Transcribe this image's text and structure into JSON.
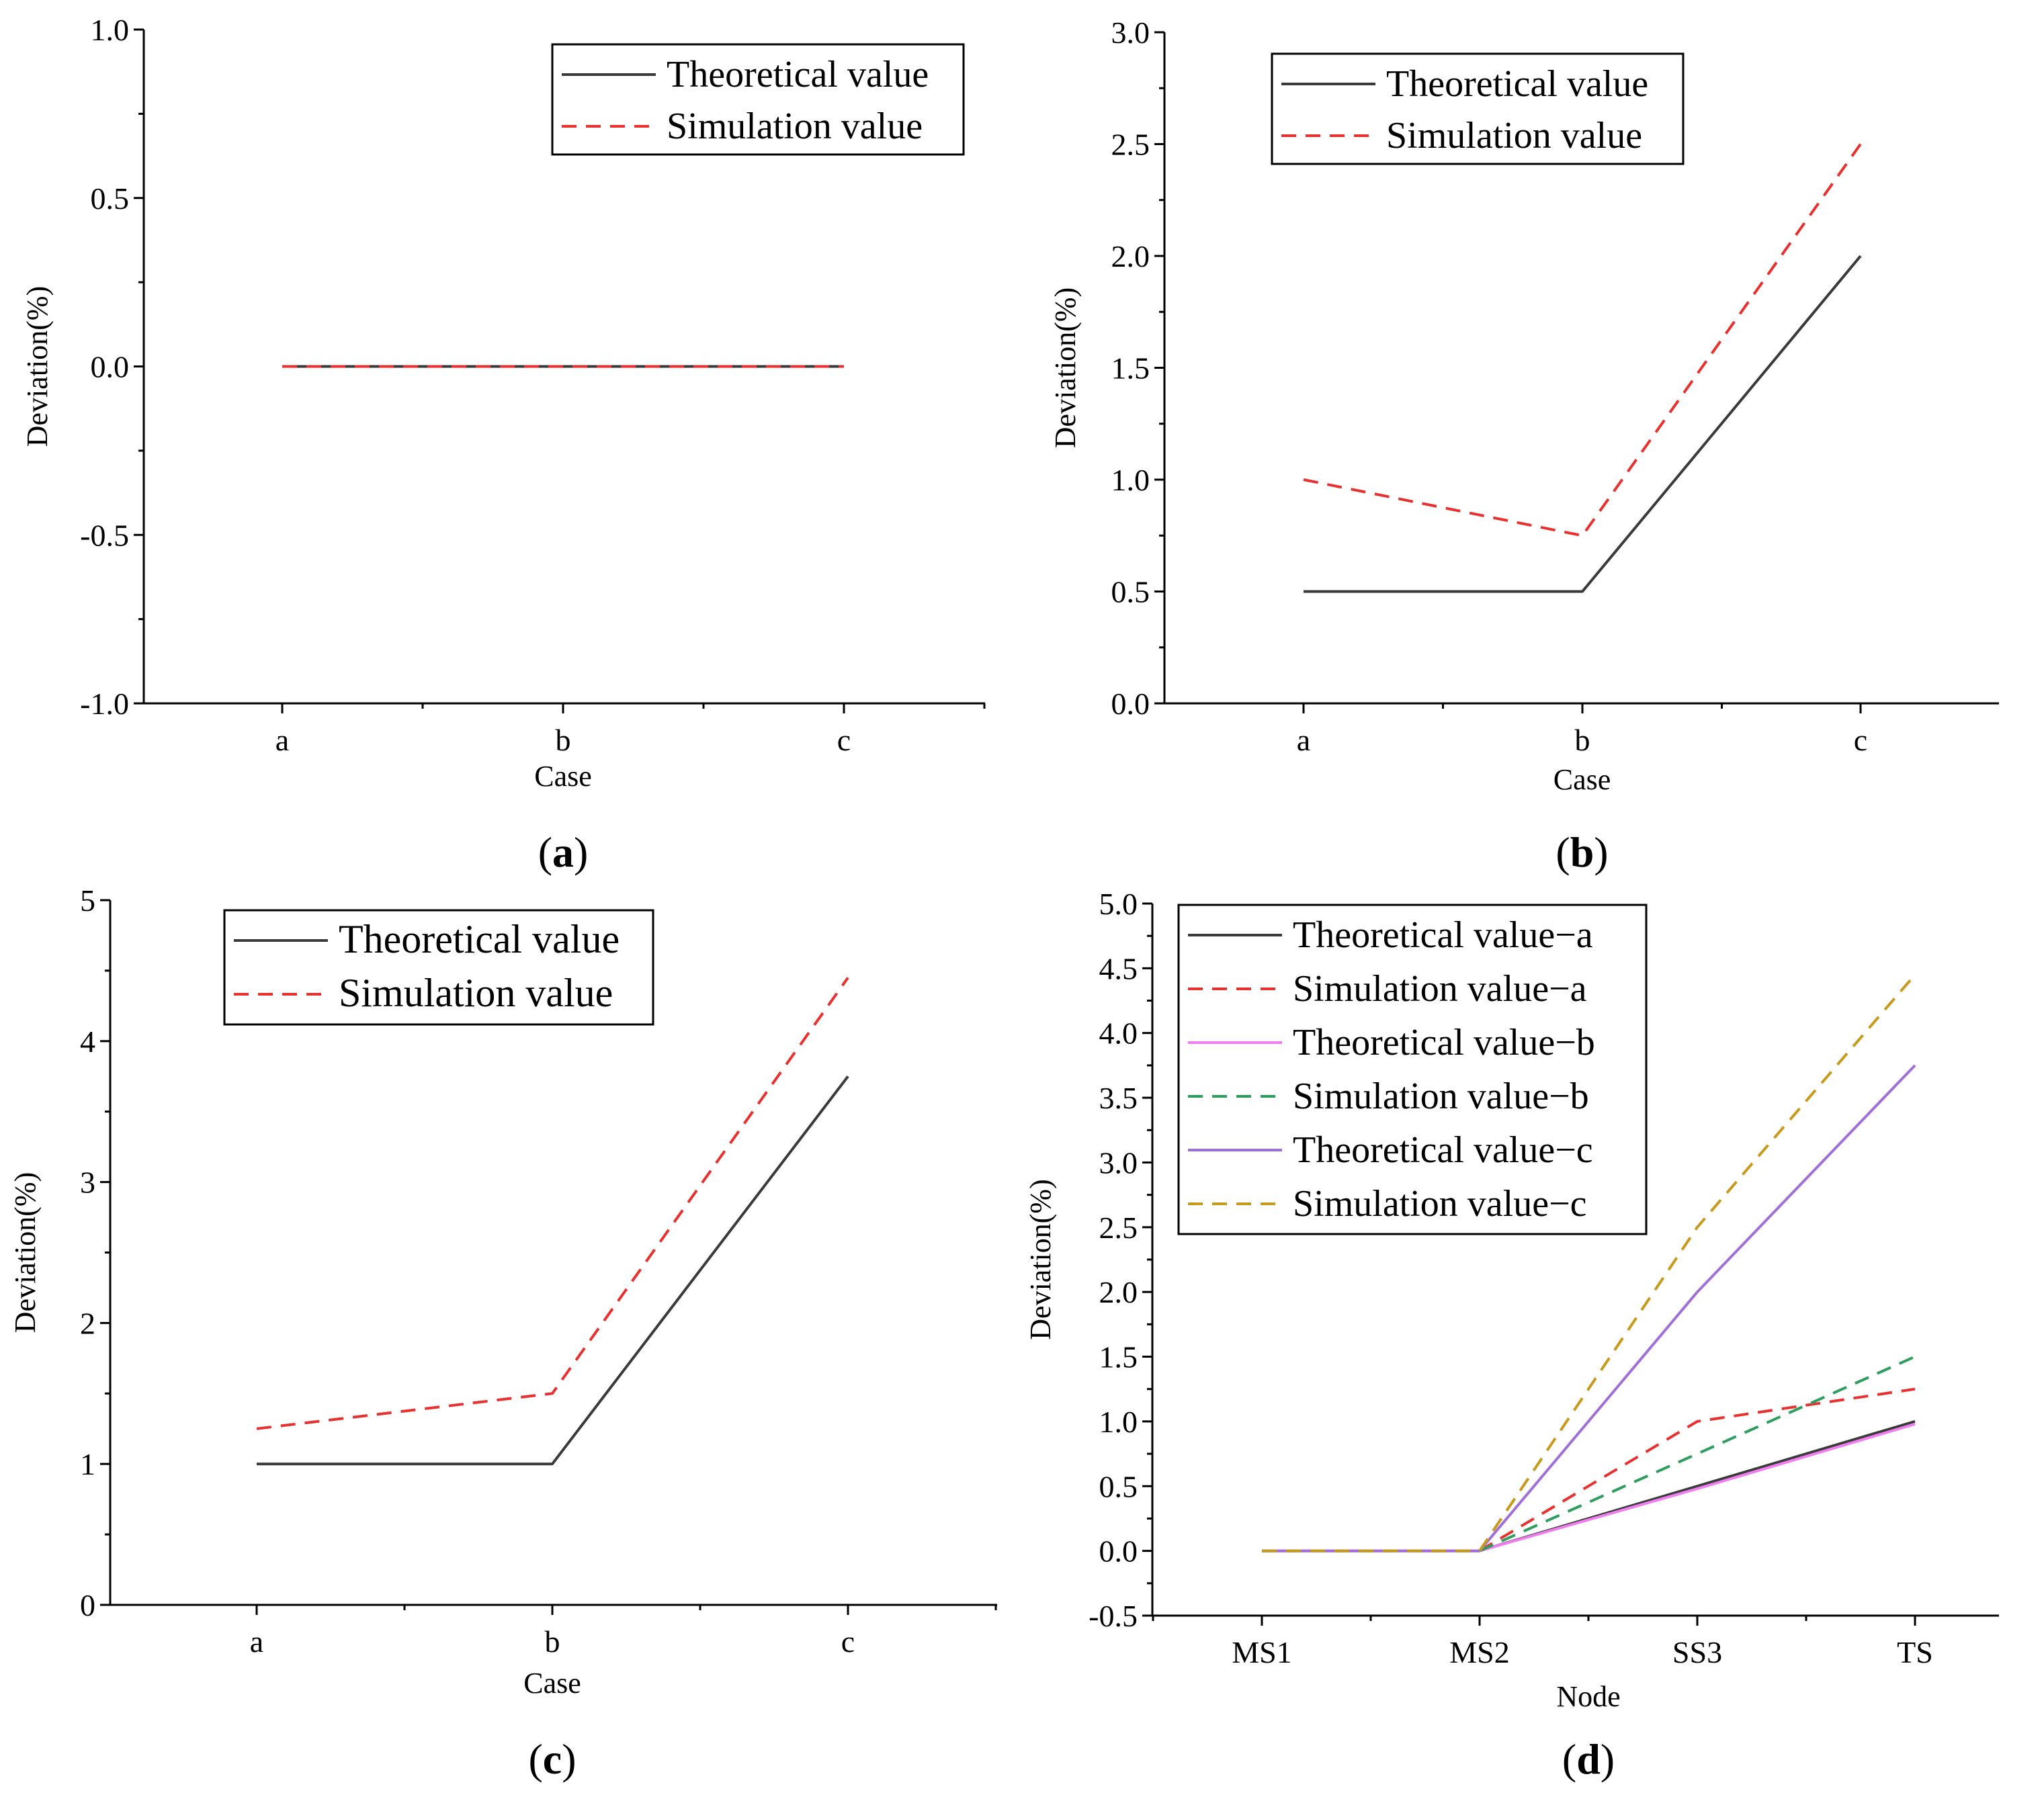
{
  "colors": {
    "theoretical": "#3a3a3a",
    "simulation": "#e8312f",
    "theoretical_b": "#f07ef0",
    "simulation_b": "#2e9e5f",
    "theoretical_c": "#a070d8",
    "simulation_c": "#c89a1c"
  },
  "chart_data": [
    {
      "panel": "(a)",
      "panel_letter": "a",
      "type": "line",
      "xlabel": "Case",
      "ylabel": "Deviation(%)",
      "categories": [
        "a",
        "b",
        "c"
      ],
      "ylim": [
        -1.0,
        1.0
      ],
      "yticks": [
        -1.0,
        -0.5,
        0.0,
        0.5,
        1.0
      ],
      "ytick_labels": [
        "-1.0",
        "-0.5",
        "0.0",
        "0.5",
        "1.0"
      ],
      "legend_position": "top-right",
      "series": [
        {
          "name": "Theoretical value",
          "style": "solid",
          "color_key": "theoretical",
          "values": [
            0,
            0,
            0
          ]
        },
        {
          "name": "Simulation value",
          "style": "dashed",
          "color_key": "simulation",
          "values": [
            0,
            0,
            0
          ]
        }
      ]
    },
    {
      "panel": "(b)",
      "panel_letter": "b",
      "type": "line",
      "xlabel": "Case",
      "ylabel": "Deviation(%)",
      "categories": [
        "a",
        "b",
        "c"
      ],
      "ylim": [
        0.0,
        3.0
      ],
      "yticks": [
        0.0,
        0.5,
        1.0,
        1.5,
        2.0,
        2.5,
        3.0
      ],
      "ytick_labels": [
        "0.0",
        "0.5",
        "1.0",
        "1.5",
        "2.0",
        "2.5",
        "3.0"
      ],
      "legend_position": "top-center",
      "series": [
        {
          "name": "Theoretical value",
          "style": "solid",
          "color_key": "theoretical",
          "values": [
            0.5,
            0.5,
            2.0
          ]
        },
        {
          "name": "Simulation value",
          "style": "dashed",
          "color_key": "simulation",
          "values": [
            1.0,
            0.75,
            2.5
          ]
        }
      ]
    },
    {
      "panel": "(c)",
      "panel_letter": "c",
      "type": "line",
      "xlabel": "Case",
      "ylabel": "Deviation(%)",
      "categories": [
        "a",
        "b",
        "c"
      ],
      "ylim": [
        0,
        5
      ],
      "yticks": [
        0,
        1,
        2,
        3,
        4,
        5
      ],
      "ytick_labels": [
        "0",
        "1",
        "2",
        "3",
        "4",
        "5"
      ],
      "legend_position": "top-center",
      "series": [
        {
          "name": "Theoretical value",
          "style": "solid",
          "color_key": "theoretical",
          "values": [
            1.0,
            1.0,
            3.75
          ]
        },
        {
          "name": "Simulation value",
          "style": "dashed",
          "color_key": "simulation",
          "values": [
            1.25,
            1.5,
            4.45
          ]
        }
      ]
    },
    {
      "panel": "(d)",
      "panel_letter": "d",
      "type": "line",
      "xlabel": "Node",
      "ylabel": "Deviation(%)",
      "categories": [
        "MS1",
        "MS2",
        "SS3",
        "TS"
      ],
      "ylim": [
        -0.5,
        5.0
      ],
      "yticks": [
        -0.5,
        0.0,
        0.5,
        1.0,
        1.5,
        2.0,
        2.5,
        3.0,
        3.5,
        4.0,
        4.5,
        5.0
      ],
      "ytick_labels": [
        "-0.5",
        "0.0",
        "0.5",
        "1.0",
        "1.5",
        "2.0",
        "2.5",
        "3.0",
        "3.5",
        "4.0",
        "4.5",
        "5.0"
      ],
      "legend_position": "top-left",
      "series": [
        {
          "name": "Theoretical value−a",
          "style": "solid",
          "color_key": "theoretical",
          "values": [
            0,
            0,
            0.5,
            1.0
          ]
        },
        {
          "name": "Simulation value−a",
          "style": "dashed",
          "color_key": "simulation",
          "values": [
            0,
            0,
            1.0,
            1.25
          ]
        },
        {
          "name": "Theoretical value−b",
          "style": "solid",
          "color_key": "theoretical_b",
          "values": [
            0,
            0,
            0.48,
            0.98
          ]
        },
        {
          "name": "Simulation value−b",
          "style": "dashed",
          "color_key": "simulation_b",
          "values": [
            0,
            0,
            0.75,
            1.5
          ]
        },
        {
          "name": "Theoretical value−c",
          "style": "solid",
          "color_key": "theoretical_c",
          "values": [
            0,
            0,
            2.0,
            3.75
          ]
        },
        {
          "name": "Simulation value−c",
          "style": "dashed",
          "color_key": "simulation_c",
          "values": [
            0,
            0,
            2.5,
            4.45
          ]
        }
      ]
    }
  ]
}
